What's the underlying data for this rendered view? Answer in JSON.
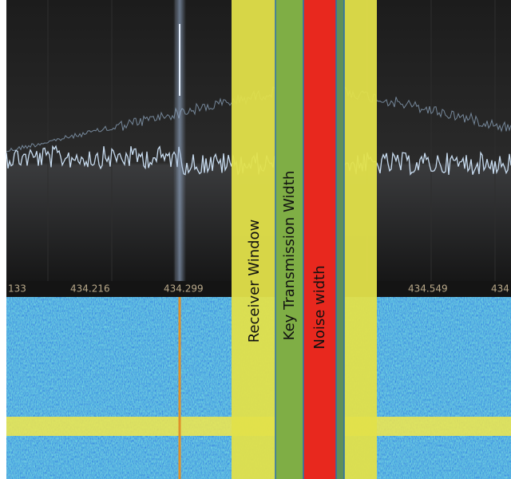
{
  "frequency_labels": [
    "133",
    "434.216",
    "434.299",
    "434.549",
    "434"
  ],
  "annotations": {
    "receiver_window": "Receiver Window",
    "key_transmission_width": "Key Transmission Width",
    "noise_width": "Noise width"
  }
}
